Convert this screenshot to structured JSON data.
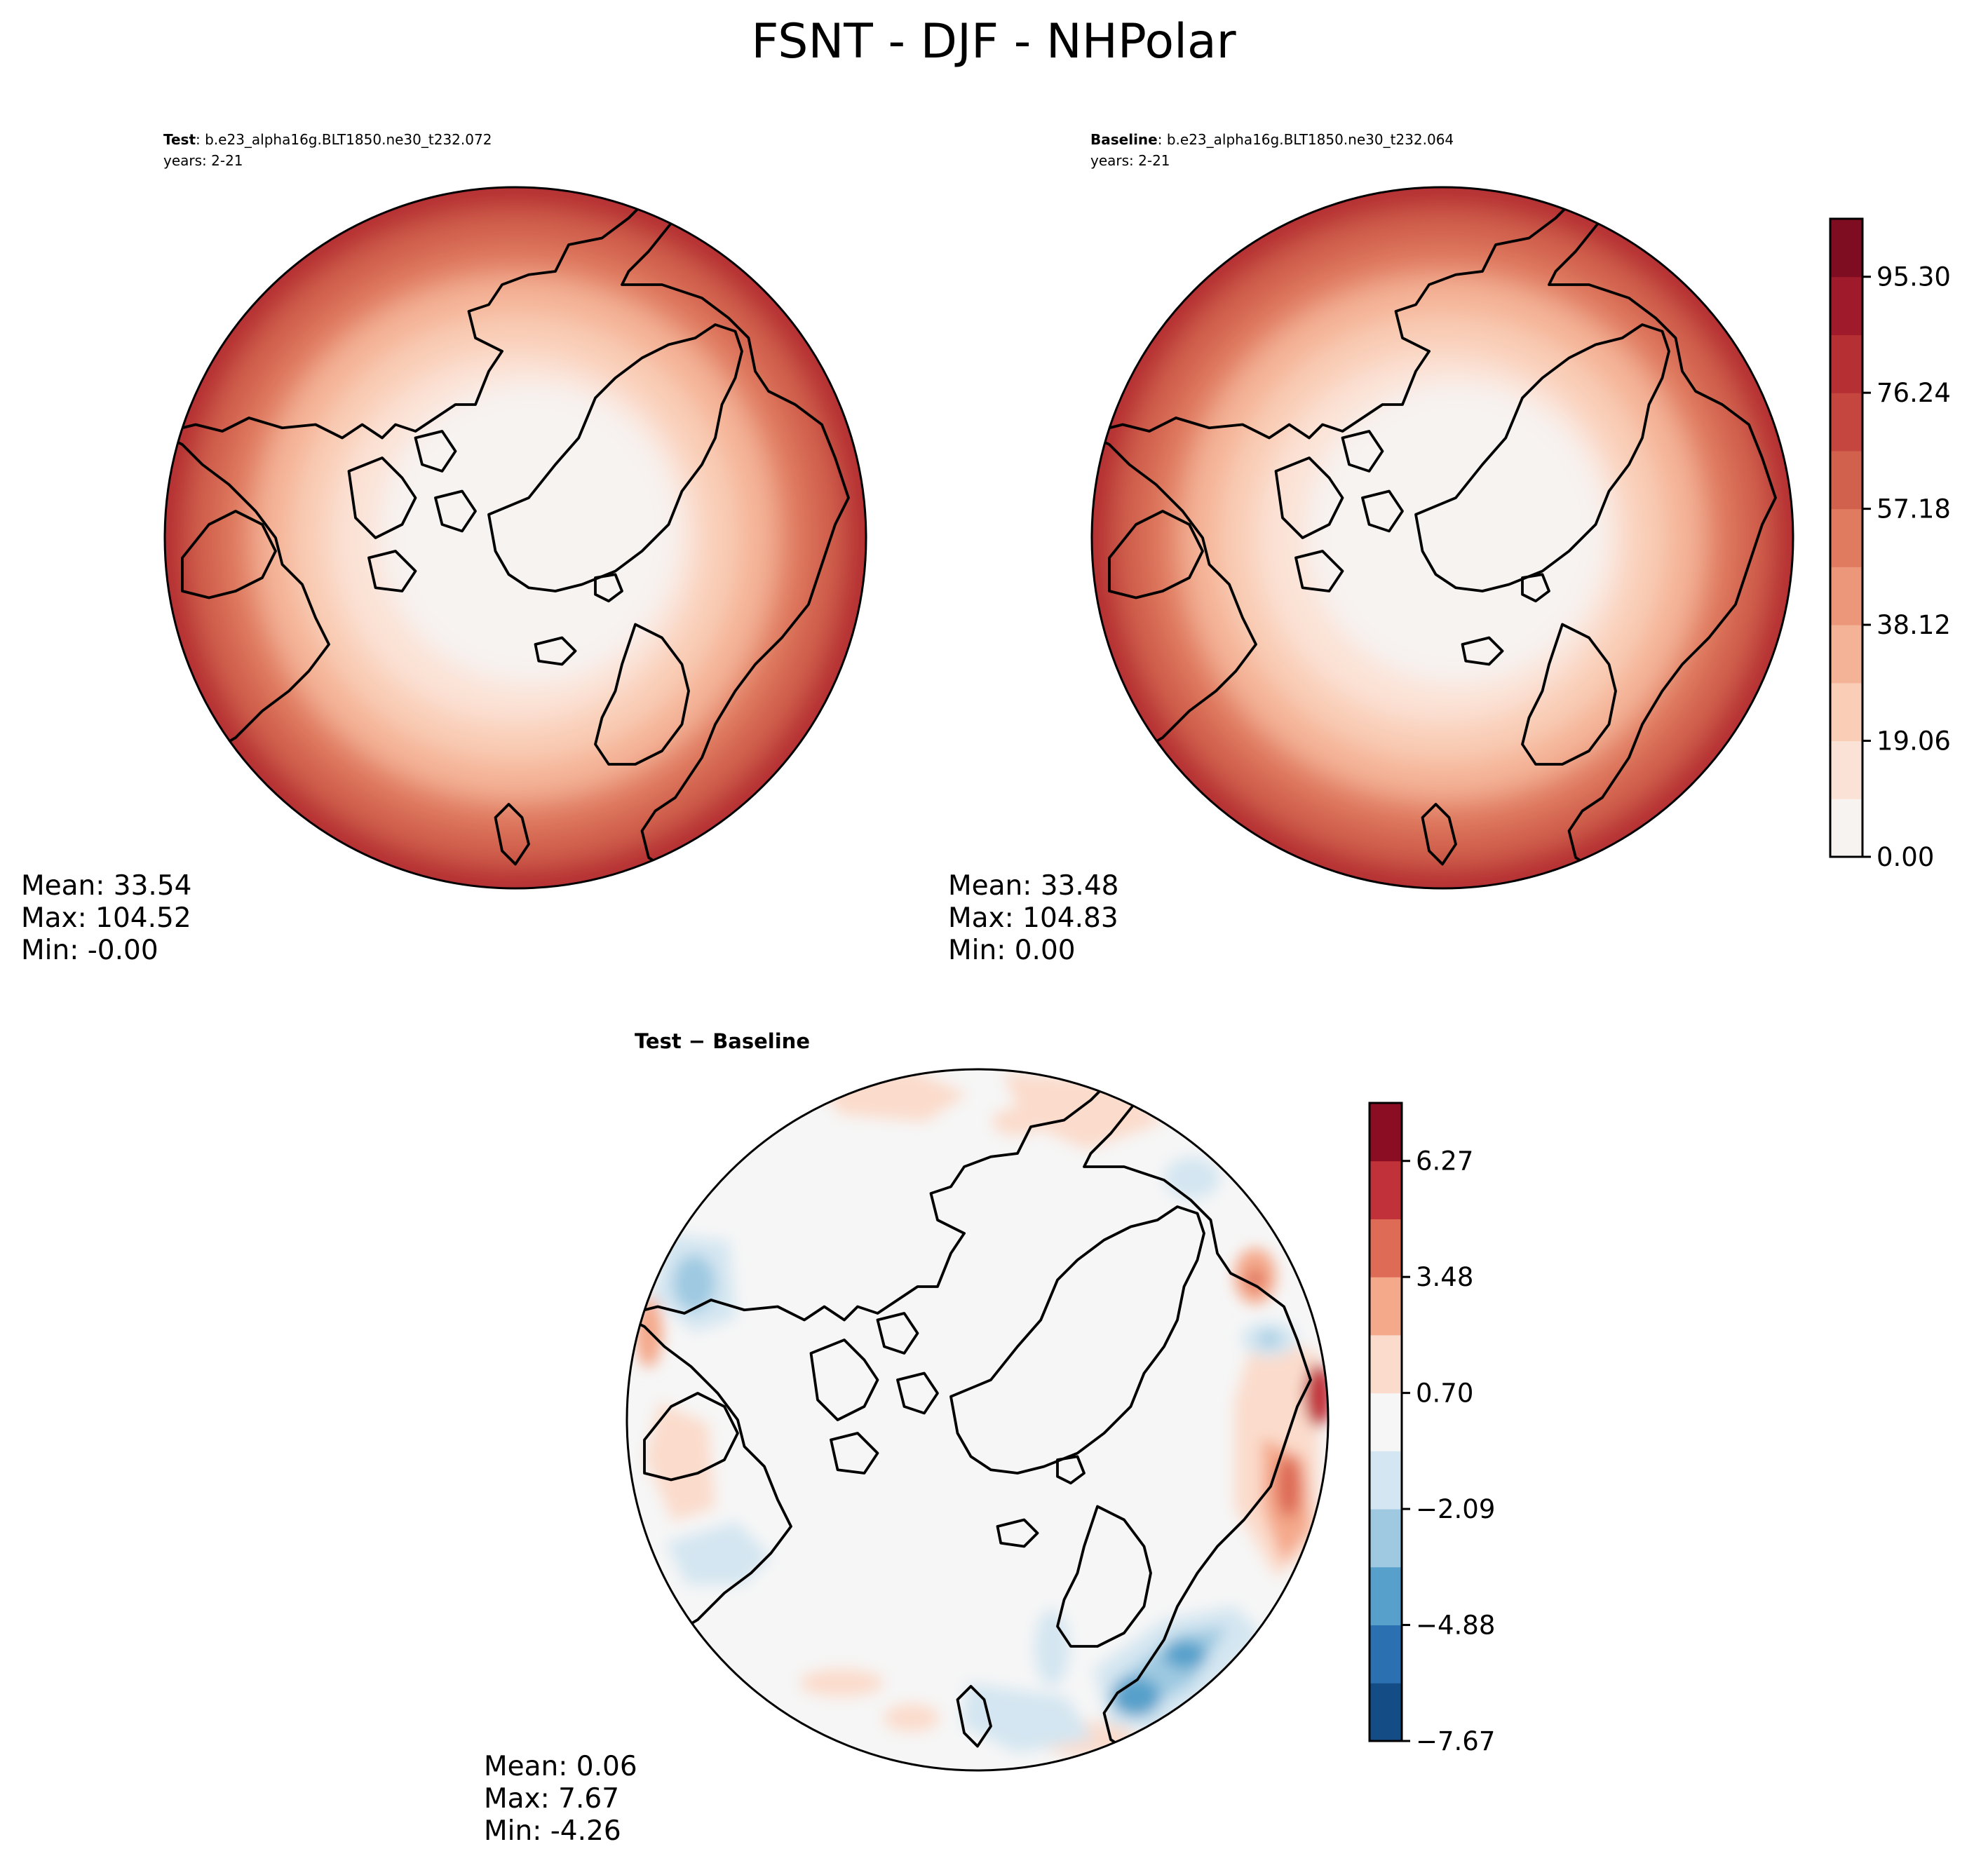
{
  "figure": {
    "title": "FSNT - DJF - NHPolar"
  },
  "panels": {
    "test": {
      "label_bold": "Test",
      "label_rest": ": b.e23_alpha16g.BLT1850.ne30_t232.072",
      "years": "years: 2-21",
      "mean": "Mean: 33.54",
      "max": "Max: 104.52",
      "min": "Min: -0.00"
    },
    "baseline": {
      "label_bold": "Baseline",
      "label_rest": ": b.e23_alpha16g.BLT1850.ne30_t232.064",
      "years": "years: 2-21",
      "mean": "Mean: 33.48",
      "max": "Max: 104.83",
      "min": "Min:  0.00"
    },
    "diff": {
      "title": "Test − Baseline",
      "mean": "Mean:  0.06",
      "max": "Max:  7.67",
      "min": "Min: -4.26"
    }
  },
  "colorbars": {
    "field": {
      "ticks": [
        "0.00",
        "19.06",
        "38.12",
        "57.18",
        "76.24",
        "95.30"
      ],
      "levels": 11,
      "colors": [
        "#f7f3f1",
        "#fbe2d6",
        "#f9cdb6",
        "#f4b296",
        "#ec967a",
        "#e07b60",
        "#d1604d",
        "#c4463f",
        "#b52f33",
        "#9f1a2b",
        "#7f0d22"
      ]
    },
    "diff": {
      "ticks": [
        "−7.67",
        "−4.88",
        "−2.09",
        "0.70",
        "3.48",
        "6.27"
      ],
      "levels": 11,
      "colors": [
        "#144c86",
        "#2b71b1",
        "#56a0cb",
        "#9ec9e1",
        "#d4e6f1",
        "#f6f6f6",
        "#fbdccc",
        "#f4a98b",
        "#dd6b55",
        "#c1313a",
        "#8a0d24"
      ]
    }
  }
}
